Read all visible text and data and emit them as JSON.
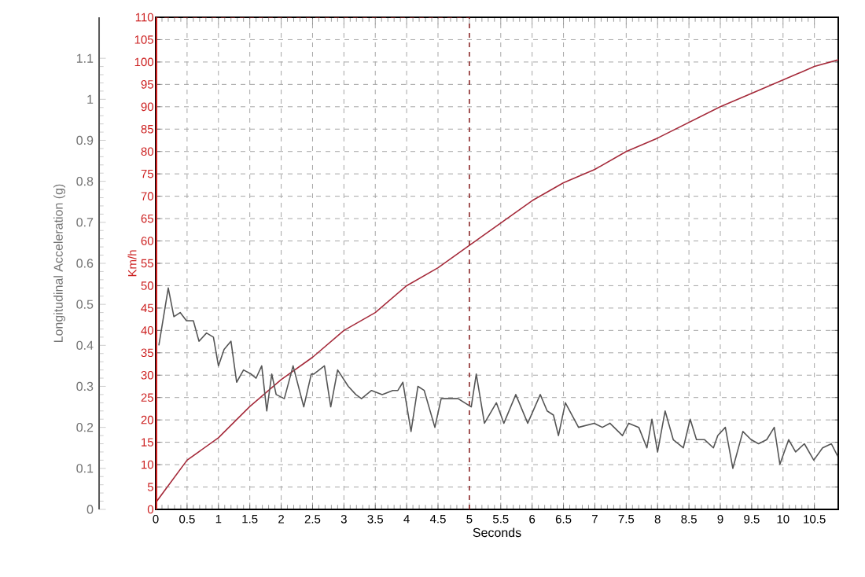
{
  "chart_data": {
    "type": "line",
    "xlabel": "Seconds",
    "ylabel": "Longitudinal Acceleration (g)",
    "y2label": "Km/h",
    "xlim": [
      0,
      10.88
    ],
    "xticks": [
      0,
      0.5,
      1,
      1.5,
      2,
      2.5,
      3,
      3.5,
      4,
      4.5,
      5,
      5.5,
      6,
      6.5,
      7,
      7.5,
      8,
      8.5,
      9,
      9.5,
      10,
      10.5
    ],
    "ylim": [
      0,
      1.2
    ],
    "yticks": [
      0,
      0.1,
      0.2,
      0.3,
      0.4,
      0.5,
      0.6,
      0.7,
      0.8,
      0.9,
      1,
      1.1
    ],
    "y2lim": [
      0,
      110
    ],
    "y2ticks": [
      0,
      5,
      10,
      15,
      20,
      25,
      30,
      35,
      40,
      45,
      50,
      55,
      60,
      65,
      70,
      75,
      80,
      85,
      90,
      95,
      100,
      105,
      110
    ],
    "grid": true,
    "line_style": "solid",
    "ref_lines": [
      {
        "axis": "x",
        "value": 5,
        "color": "#8b1a1a",
        "line_style": "dashed"
      }
    ],
    "series": [
      {
        "axis": "y2",
        "color": "#a52a3a",
        "x": [
          0,
          0.5,
          1,
          1.5,
          2,
          2.5,
          3,
          3.5,
          4,
          4.5,
          5,
          5.5,
          6,
          6.5,
          7,
          7.5,
          8,
          8.5,
          9,
          9.5,
          10,
          10.5,
          10.88
        ],
        "values": [
          1.5,
          11,
          16,
          23,
          29,
          34,
          40,
          44,
          50,
          54,
          59,
          64,
          69,
          73,
          76,
          80,
          83,
          86.5,
          90,
          93,
          96,
          99,
          100.5
        ]
      },
      {
        "axis": "y",
        "color": "#555555",
        "x": [
          0.05,
          0.2,
          0.29,
          0.39,
          0.49,
          0.6,
          0.69,
          0.81,
          0.92,
          1.0,
          1.09,
          1.2,
          1.29,
          1.4,
          1.52,
          1.6,
          1.69,
          1.77,
          1.85,
          1.92,
          2.05,
          2.19,
          2.36,
          2.48,
          2.52,
          2.69,
          2.79,
          2.9,
          3.07,
          3.19,
          3.28,
          3.44,
          3.61,
          3.78,
          3.86,
          3.94,
          4.07,
          4.18,
          4.28,
          4.45,
          4.55,
          4.7,
          4.82,
          5.03,
          5.11,
          5.24,
          5.43,
          5.55,
          5.74,
          5.93,
          6.13,
          6.24,
          6.34,
          6.42,
          6.53,
          6.74,
          6.99,
          7.12,
          7.24,
          7.44,
          7.54,
          7.7,
          7.83,
          7.91,
          8.0,
          8.12,
          8.25,
          8.41,
          8.52,
          8.62,
          8.75,
          8.89,
          8.96,
          9.08,
          9.2,
          9.36,
          9.49,
          9.61,
          9.74,
          9.86,
          9.95,
          10.09,
          10.2,
          10.34,
          10.49,
          10.63,
          10.77,
          10.87
        ],
        "values": [
          0.4,
          0.54,
          0.47,
          0.48,
          0.46,
          0.46,
          0.41,
          0.43,
          0.42,
          0.35,
          0.39,
          0.41,
          0.31,
          0.34,
          0.33,
          0.32,
          0.35,
          0.24,
          0.33,
          0.28,
          0.27,
          0.35,
          0.25,
          0.33,
          0.33,
          0.35,
          0.25,
          0.34,
          0.3,
          0.28,
          0.27,
          0.29,
          0.28,
          0.29,
          0.29,
          0.31,
          0.19,
          0.3,
          0.29,
          0.2,
          0.27,
          0.27,
          0.27,
          0.25,
          0.33,
          0.21,
          0.26,
          0.21,
          0.28,
          0.21,
          0.28,
          0.24,
          0.23,
          0.18,
          0.26,
          0.2,
          0.21,
          0.2,
          0.21,
          0.18,
          0.21,
          0.2,
          0.15,
          0.22,
          0.14,
          0.24,
          0.17,
          0.15,
          0.22,
          0.17,
          0.17,
          0.15,
          0.18,
          0.2,
          0.1,
          0.19,
          0.17,
          0.16,
          0.17,
          0.2,
          0.11,
          0.17,
          0.14,
          0.16,
          0.12,
          0.15,
          0.16,
          0.13
        ]
      }
    ]
  }
}
